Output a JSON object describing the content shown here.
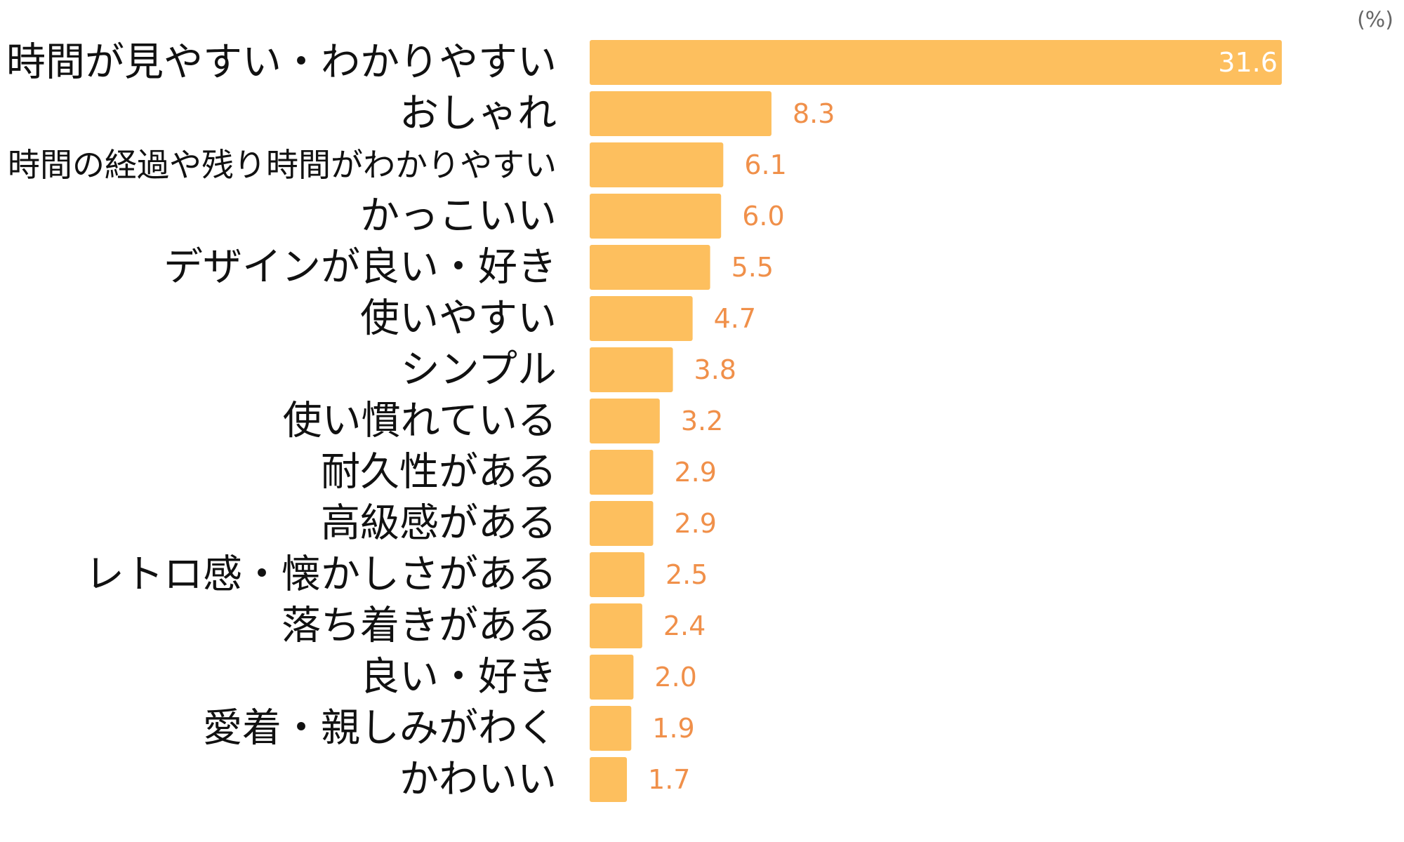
{
  "chart_data": {
    "type": "bar",
    "orientation": "horizontal",
    "unit": "(%)",
    "categories": [
      "時間が見やすい・わかりやすい",
      "おしゃれ",
      "時間の経過や残り時間がわかりやすい",
      "かっこいい",
      "デザインが良い・好き",
      "使いやすい",
      "シンプル",
      "使い慣れている",
      "耐久性がある",
      "高級感がある",
      "レトロ感・懐かしさがある",
      "落ち着きがある",
      "良い・好き",
      "愛着・親しみがわく",
      "かわいい"
    ],
    "values": [
      31.6,
      8.3,
      6.1,
      6.0,
      5.5,
      4.7,
      3.8,
      3.2,
      2.9,
      2.9,
      2.5,
      2.4,
      2.0,
      1.9,
      1.7
    ],
    "value_labels": [
      "31.6",
      "8.3",
      "6.1",
      "6.0",
      "5.5",
      "4.7",
      "3.8",
      "3.2",
      "2.9",
      "2.9",
      "2.5",
      "2.4",
      "2.0",
      "1.9",
      "1.7"
    ],
    "xlim": [
      0,
      40
    ],
    "grid": false,
    "legend": "none",
    "colors": {
      "bar": "#FDBF5E",
      "value_label": "#F0904A",
      "value_label_inside": "#FFFFFF",
      "category_label": "#111111",
      "unit_label": "#666666"
    }
  }
}
